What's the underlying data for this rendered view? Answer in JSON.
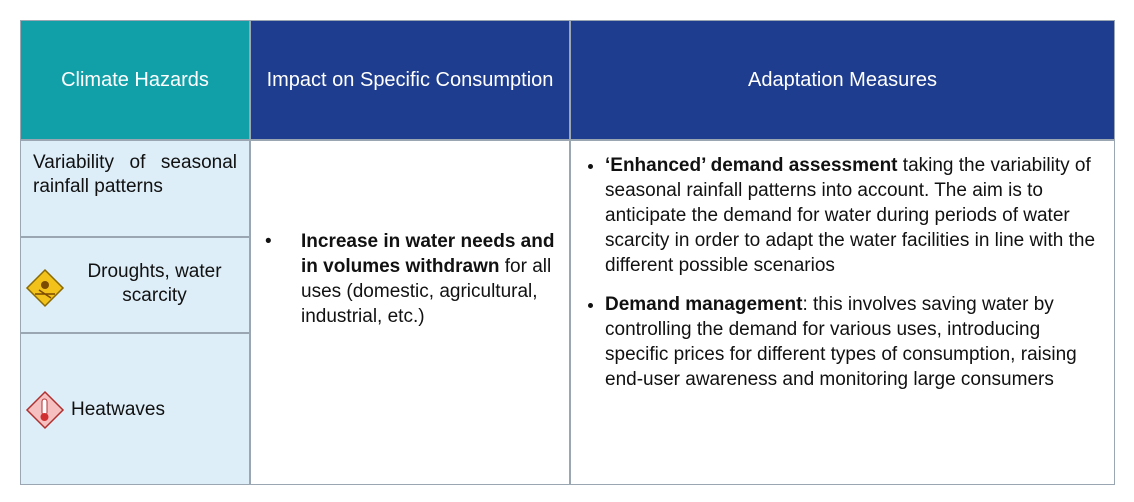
{
  "table": {
    "header": [
      "Climate Hazards",
      "Impact on Specific Consumption",
      "Adaptation Measures"
    ],
    "hazards": [
      "Variability of seasonal rainfall patterns",
      "Droughts, water scarcity",
      "Heatwaves"
    ],
    "impact": {
      "bold": "Increase in water needs and in volumes withdrawn",
      "text": " for all uses (domestic, agricultural, industrial, etc.)"
    },
    "measures": [
      {
        "bold": "‘Enhanced’ demand assessment",
        "text": " taking the variability of seasonal rainfall patterns into account. The aim is to anticipate the demand for water during periods of water scarcity in order to adapt the water facilities in line with the different possible scenarios"
      },
      {
        "bold": "Demand management",
        "text": ": this involves saving water by controlling the demand for various uses, introducing specific prices for different types of consumption, raising end-user awareness and monitoring large consumers"
      }
    ]
  }
}
